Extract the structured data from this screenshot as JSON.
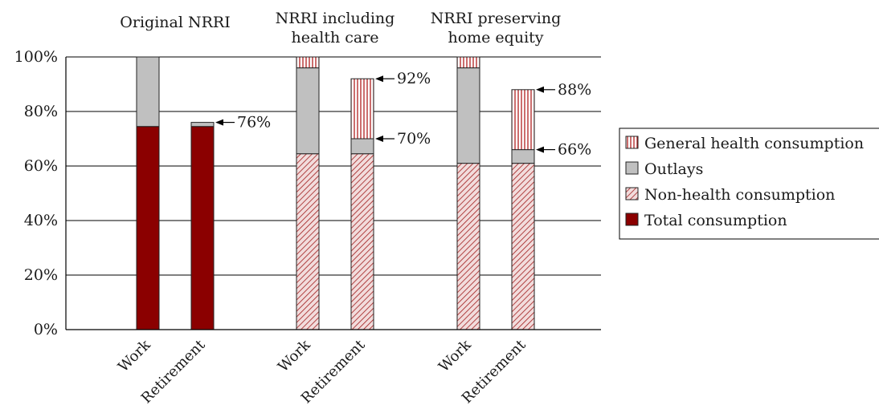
{
  "chart_data": {
    "type": "bar",
    "stacked": true,
    "groups": [
      {
        "title": "Original NRRI",
        "categories": [
          "Work",
          "Retirement"
        ]
      },
      {
        "title": "NRRI including\nhealth care",
        "categories": [
          "Work",
          "Retirement"
        ]
      },
      {
        "title": "NRRI preserving\nhome equity",
        "categories": [
          "Work",
          "Retirement"
        ]
      }
    ],
    "series": [
      {
        "name": "Total consumption",
        "color": "#8b0000",
        "pattern": "solid",
        "values": [
          [
            74.5,
            74.5
          ],
          [
            0,
            0
          ],
          [
            0,
            0
          ]
        ]
      },
      {
        "name": "Non-health consumption",
        "color": "#a01c1c",
        "pattern": "diagonal-hatch",
        "values": [
          [
            0,
            0
          ],
          [
            64.5,
            64.5
          ],
          [
            61,
            61
          ]
        ]
      },
      {
        "name": "Outlays",
        "color": "#c0c0c0",
        "pattern": "solid",
        "values": [
          [
            25.5,
            1.5
          ],
          [
            31.5,
            5.5
          ],
          [
            35,
            5
          ]
        ]
      },
      {
        "name": "General health consumption",
        "color": "#a01c1c",
        "pattern": "vertical-stripes",
        "values": [
          [
            0,
            0
          ],
          [
            4,
            22
          ],
          [
            4,
            22
          ]
        ]
      }
    ],
    "annotations": [
      {
        "group": 0,
        "bar": 1,
        "value": 76,
        "label": "76%"
      },
      {
        "group": 1,
        "bar": 1,
        "value": 92,
        "label": "92%"
      },
      {
        "group": 1,
        "bar": 1,
        "value": 70,
        "label": "70%"
      },
      {
        "group": 2,
        "bar": 1,
        "value": 88,
        "label": "88%"
      },
      {
        "group": 2,
        "bar": 1,
        "value": 66,
        "label": "66%"
      }
    ],
    "y_ticks": [
      "0%",
      "20%",
      "40%",
      "60%",
      "80%",
      "100%"
    ],
    "ylim": [
      0,
      100
    ],
    "grid": true,
    "legend": {
      "position": "right",
      "entries": [
        "General health consumption",
        "Outlays",
        "Non-health consumption",
        "Total consumption"
      ]
    }
  }
}
